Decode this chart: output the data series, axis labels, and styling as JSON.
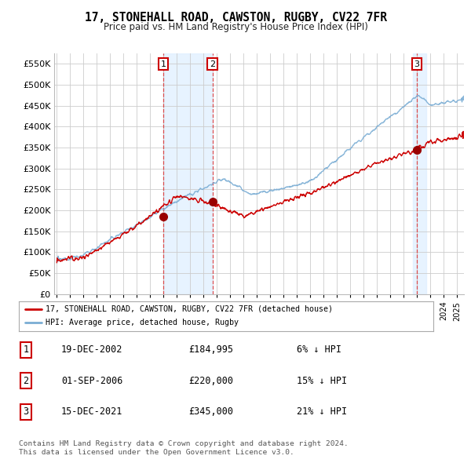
{
  "title": "17, STONEHALL ROAD, CAWSTON, RUGBY, CV22 7FR",
  "subtitle": "Price paid vs. HM Land Registry's House Price Index (HPI)",
  "ytick_vals": [
    0,
    50000,
    100000,
    150000,
    200000,
    250000,
    300000,
    350000,
    400000,
    450000,
    500000,
    550000
  ],
  "ylim": [
    0,
    575000
  ],
  "xlim_start": 1994.8,
  "xlim_end": 2025.5,
  "sale_dates": [
    2002.97,
    2006.67,
    2021.96
  ],
  "sale_prices": [
    184995,
    220000,
    345000
  ],
  "sale_labels": [
    "1",
    "2",
    "3"
  ],
  "legend_items": [
    {
      "label": "17, STONEHALL ROAD, CAWSTON, RUGBY, CV22 7FR (detached house)",
      "color": "#cc0000"
    },
    {
      "label": "HPI: Average price, detached house, Rugby",
      "color": "#7aadd4"
    }
  ],
  "table_rows": [
    {
      "num": "1",
      "date": "19-DEC-2002",
      "price": "£184,995",
      "hpi": "6% ↓ HPI"
    },
    {
      "num": "2",
      "date": "01-SEP-2006",
      "price": "£220,000",
      "hpi": "15% ↓ HPI"
    },
    {
      "num": "3",
      "date": "15-DEC-2021",
      "price": "£345,000",
      "hpi": "21% ↓ HPI"
    }
  ],
  "footnote1": "Contains HM Land Registry data © Crown copyright and database right 2024.",
  "footnote2": "This data is licensed under the Open Government Licence v3.0.",
  "background_color": "#ffffff",
  "plot_bg_color": "#ffffff",
  "grid_color": "#cccccc",
  "hpi_line_color": "#7aadd4",
  "sale_line_color": "#cc0000",
  "shade_color": "#ddeeff"
}
